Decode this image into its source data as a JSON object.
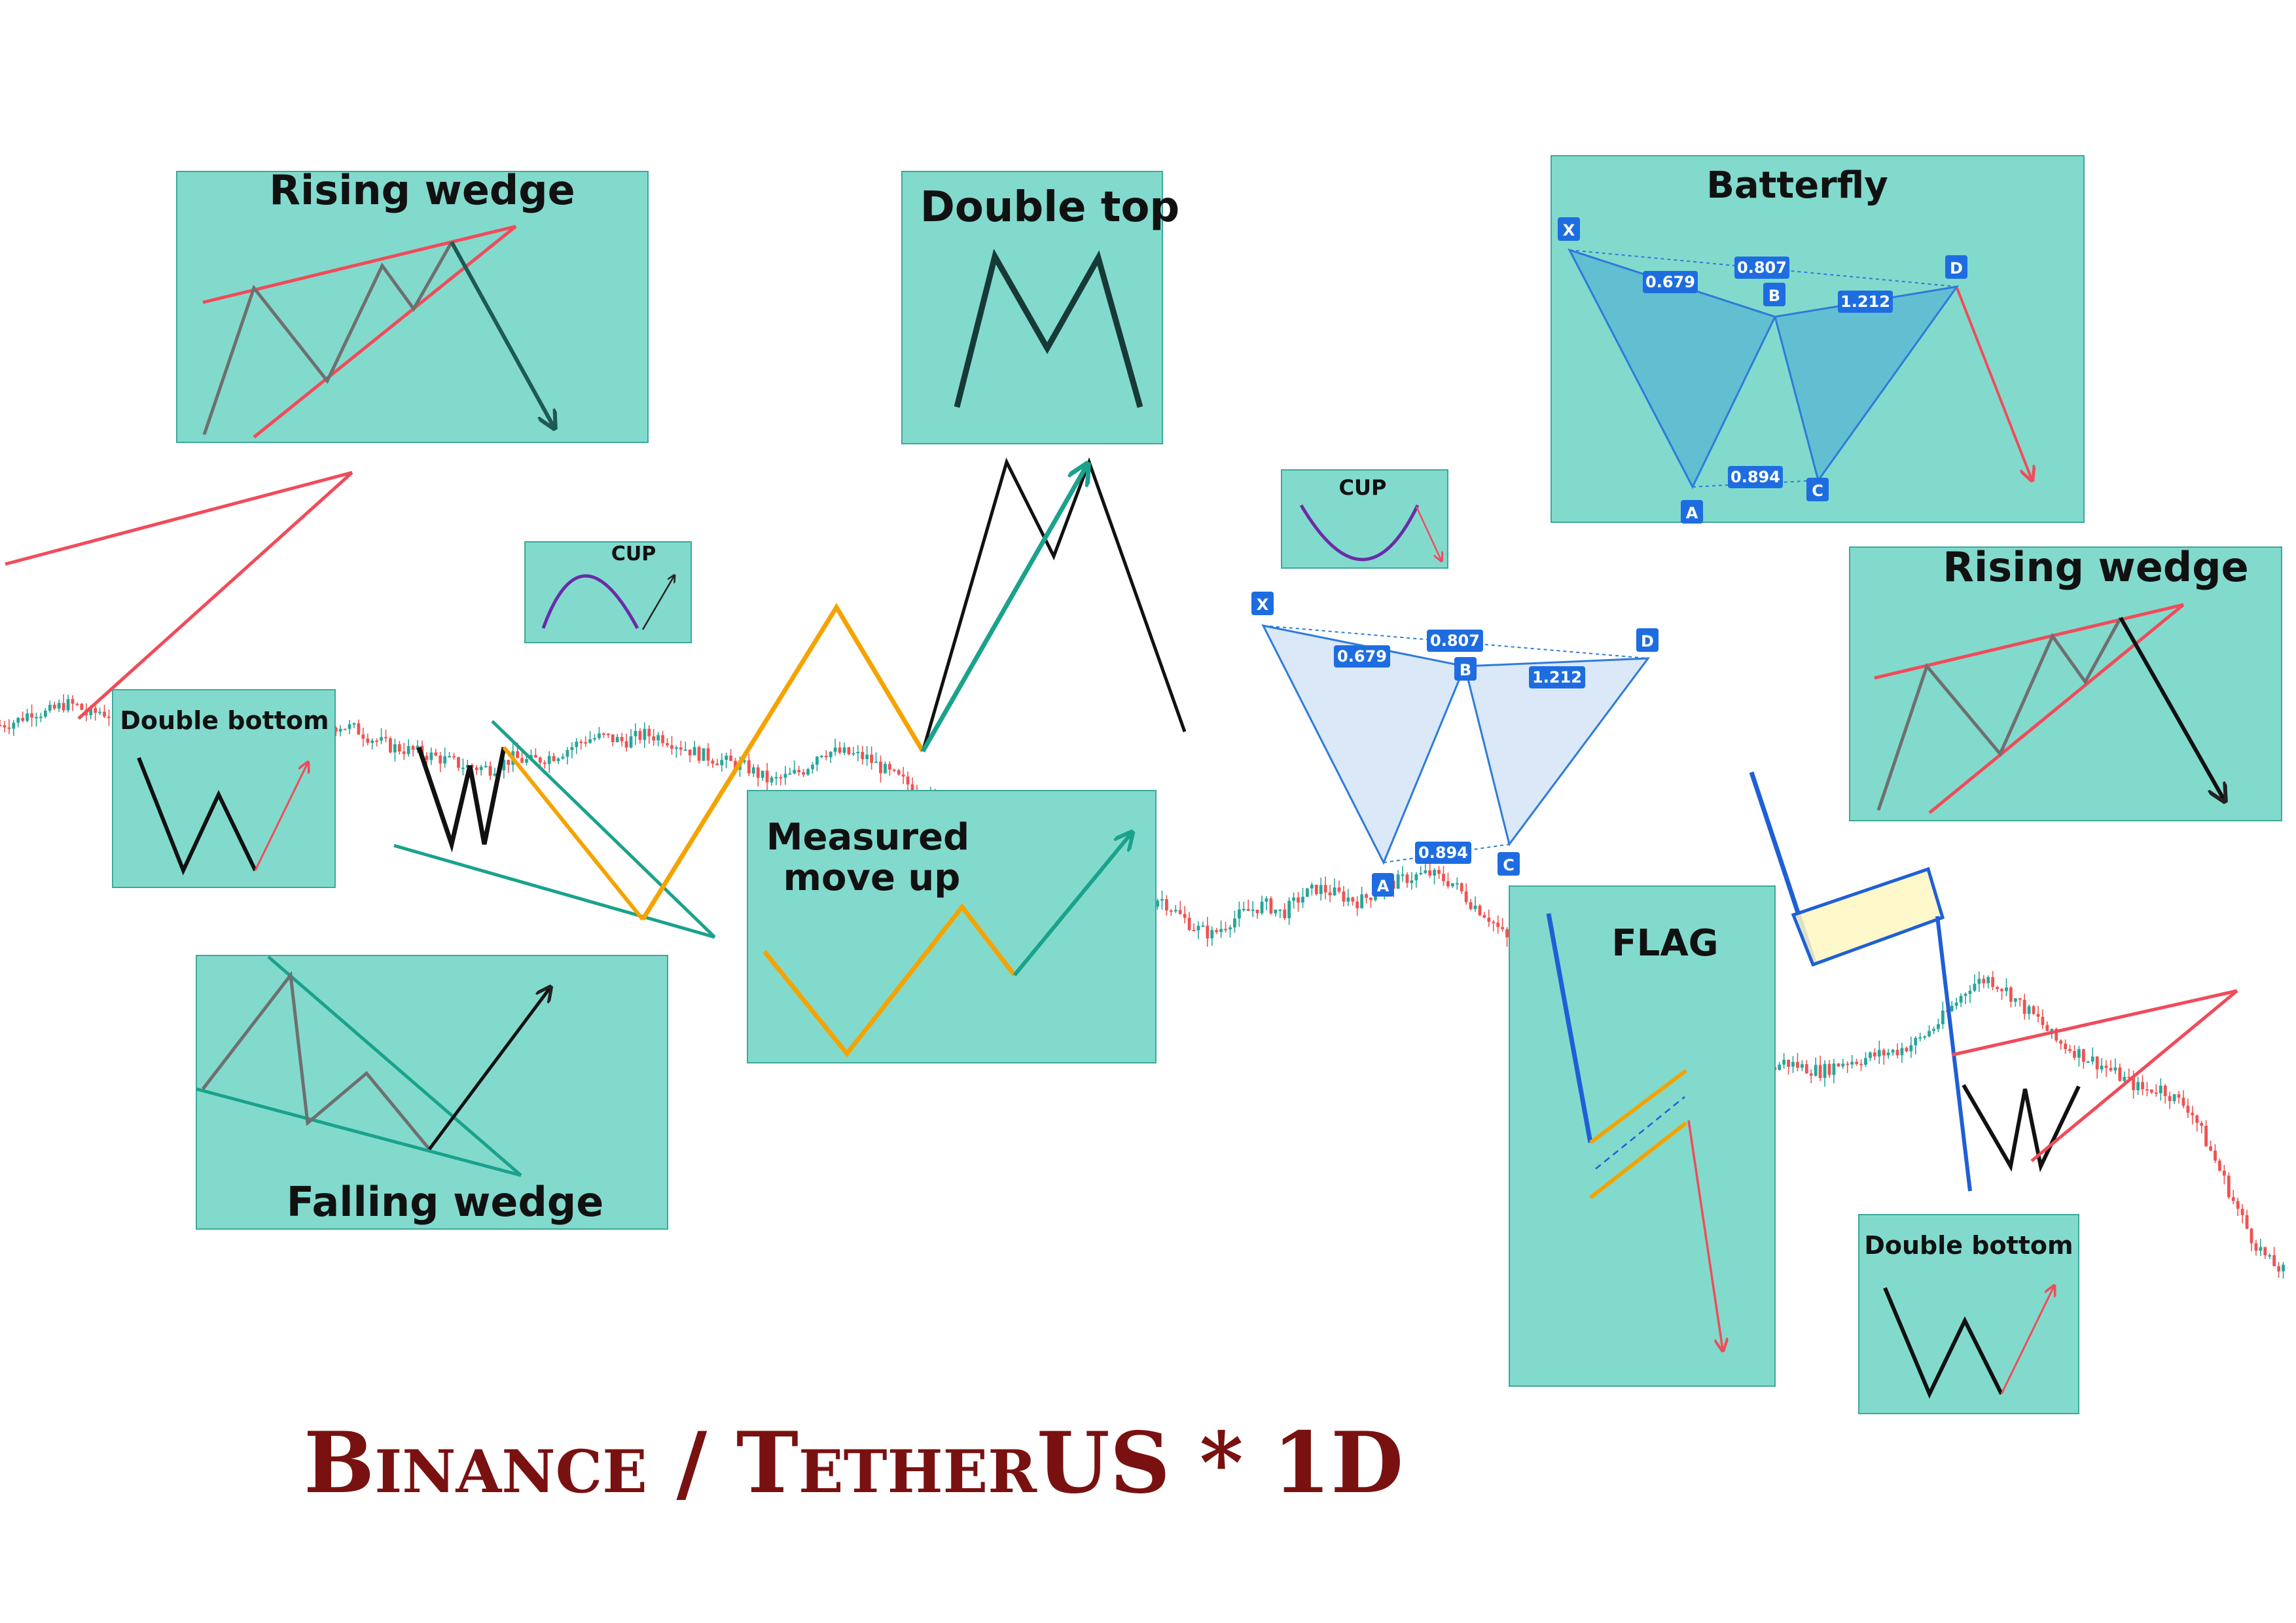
{
  "chart_data": {
    "type": "line",
    "title": "Binance / TetherUS * 1D",
    "xlabel": "",
    "ylabel": "",
    "patterns": [
      {
        "name": "Rising wedge",
        "bias": "bearish"
      },
      {
        "name": "Double bottom",
        "bias": "bullish"
      },
      {
        "name": "CUP",
        "bias": "bullish"
      },
      {
        "name": "Falling wedge",
        "bias": "bullish"
      },
      {
        "name": "Measured move up",
        "bias": "bullish"
      },
      {
        "name": "Double top",
        "bias": "bearish"
      },
      {
        "name": "CUP",
        "bias": "bearish"
      },
      {
        "name": "Batterfly",
        "bias": "bearish"
      },
      {
        "name": "Rising wedge",
        "bias": "bearish"
      },
      {
        "name": "FLAG",
        "bias": "bearish"
      },
      {
        "name": "Double bottom",
        "bias": "bullish"
      }
    ],
    "harmonic": {
      "points": [
        "X",
        "A",
        "B",
        "C",
        "D"
      ],
      "ratios": [
        "0.679",
        "0.807",
        "1.212",
        "0.894"
      ]
    },
    "price_path": [
      [
        0,
        40
      ],
      [
        12,
        44
      ],
      [
        22,
        52
      ],
      [
        32,
        50
      ],
      [
        44,
        58
      ],
      [
        54,
        56
      ],
      [
        60,
        48
      ],
      [
        68,
        52
      ],
      [
        80,
        46
      ],
      [
        86,
        26
      ],
      [
        96,
        24
      ],
      [
        104,
        22
      ],
      [
        112,
        14
      ],
      [
        126,
        12
      ],
      [
        135,
        18
      ],
      [
        142,
        20
      ],
      [
        150,
        22
      ],
      [
        160,
        17
      ],
      [
        170,
        16
      ],
      [
        180,
        18
      ],
      [
        195,
        30
      ],
      [
        200,
        34
      ],
      [
        208,
        30
      ],
      [
        216,
        46
      ],
      [
        222,
        38
      ],
      [
        232,
        40
      ],
      [
        244,
        36
      ],
      [
        252,
        30
      ],
      [
        266,
        22
      ],
      [
        282,
        18
      ],
      [
        300,
        12
      ],
      [
        318,
        5
      ],
      [
        335,
        3
      ],
      [
        350,
        12
      ],
      [
        362,
        9
      ],
      [
        380,
        15
      ],
      [
        400,
        28
      ],
      [
        412,
        30
      ],
      [
        426,
        26
      ],
      [
        440,
        32
      ],
      [
        452,
        30
      ],
      [
        462,
        24
      ],
      [
        476,
        16
      ],
      [
        492,
        10
      ],
      [
        510,
        4
      ],
      [
        526,
        -8
      ],
      [
        540,
        -3
      ],
      [
        550,
        3
      ],
      [
        560,
        18
      ],
      [
        578,
        16
      ],
      [
        592,
        12
      ],
      [
        606,
        0
      ],
      [
        620,
        -10
      ],
      [
        636,
        -22
      ],
      [
        652,
        -30
      ],
      [
        664,
        -40
      ],
      [
        672,
        -48
      ],
      [
        686,
        -46
      ],
      [
        694,
        -58
      ],
      [
        708,
        -74
      ],
      [
        722,
        -88
      ],
      [
        736,
        -100
      ],
      [
        750,
        -92
      ],
      [
        770,
        -104
      ],
      [
        784,
        -112
      ],
      [
        792,
        -106
      ],
      [
        804,
        -120
      ],
      [
        816,
        -132
      ],
      [
        828,
        -138
      ],
      [
        840,
        -126
      ],
      [
        852,
        -118
      ],
      [
        864,
        -112
      ],
      [
        876,
        -120
      ],
      [
        888,
        -106
      ],
      [
        900,
        -98
      ],
      [
        914,
        -104
      ],
      [
        928,
        -110
      ],
      [
        944,
        -98
      ],
      [
        960,
        -90
      ],
      [
        976,
        -86
      ],
      [
        992,
        -94
      ],
      [
        1004,
        -110
      ],
      [
        1016,
        -122
      ],
      [
        1028,
        -140
      ],
      [
        1040,
        -160
      ],
      [
        1052,
        -176
      ],
      [
        1064,
        -194
      ],
      [
        1076,
        -210
      ],
      [
        1088,
        -226
      ],
      [
        1100,
        -240
      ],
      [
        1112,
        -256
      ],
      [
        1122,
        -264
      ],
      [
        1134,
        -262
      ],
      [
        1146,
        -268
      ],
      [
        1158,
        -272
      ],
      [
        1170,
        -266
      ],
      [
        1182,
        -262
      ],
      [
        1194,
        -258
      ],
      [
        1206,
        -255
      ],
      [
        1218,
        -246
      ],
      [
        1230,
        -250
      ],
      [
        1244,
        -254
      ],
      [
        1258,
        -246
      ],
      [
        1270,
        -244
      ],
      [
        1282,
        -240
      ],
      [
        1296,
        -236
      ],
      [
        1310,
        -228
      ],
      [
        1322,
        -215
      ],
      [
        1334,
        -198
      ],
      [
        1346,
        -180
      ],
      [
        1358,
        -175
      ],
      [
        1370,
        -185
      ],
      [
        1382,
        -200
      ],
      [
        1392,
        -210
      ],
      [
        1404,
        -228
      ],
      [
        1416,
        -236
      ],
      [
        1428,
        -244
      ],
      [
        1440,
        -252
      ],
      [
        1452,
        -262
      ],
      [
        1464,
        -270
      ],
      [
        1476,
        -268
      ],
      [
        1484,
        -276
      ],
      [
        1496,
        -286
      ],
      [
        1506,
        -312
      ],
      [
        1516,
        -338
      ],
      [
        1526,
        -366
      ],
      [
        1538,
        -396
      ],
      [
        1550,
        -416
      ],
      [
        1560,
        -424
      ]
    ]
  },
  "text": {
    "rising_wedge_1": "Rising wedge",
    "double_bottom_1": "Double bottom",
    "cup_1": "CUP",
    "falling_wedge": "Falling wedge",
    "measured_move_l1": "Measured",
    "measured_move_l2": "move up",
    "double_top": "Double top",
    "cup_2": "CUP",
    "batterfly": "Batterfly",
    "rising_wedge_2": "Rising wedge",
    "flag": "FLAG",
    "double_bottom_2": "Double bottom",
    "footer_title": "Binance / TetherUS * 1D",
    "pt_x": "X",
    "pt_a": "A",
    "pt_b": "B",
    "pt_c": "C",
    "pt_d": "D",
    "r_xb": "0.679",
    "r_xd": "0.807",
    "r_bd": "1.212",
    "r_ac": "0.894"
  },
  "colors": {
    "panel_fill": "#82dacd",
    "panel_border": "#3da99a",
    "bull_candle": "#26a69a",
    "bear_candle": "#ef5350",
    "wedge_red": "#f14b5a",
    "teal_line": "#1aa28c",
    "orange_line": "#f5a300",
    "harmonic_blue": "#2e7bd9",
    "harmonic_fill": "#cfe0f6",
    "flag_fill": "#fff7c2",
    "flag_blue": "#1f5fd6",
    "purple_cup": "#6a2ca8",
    "footer_red": "#7a1111"
  }
}
